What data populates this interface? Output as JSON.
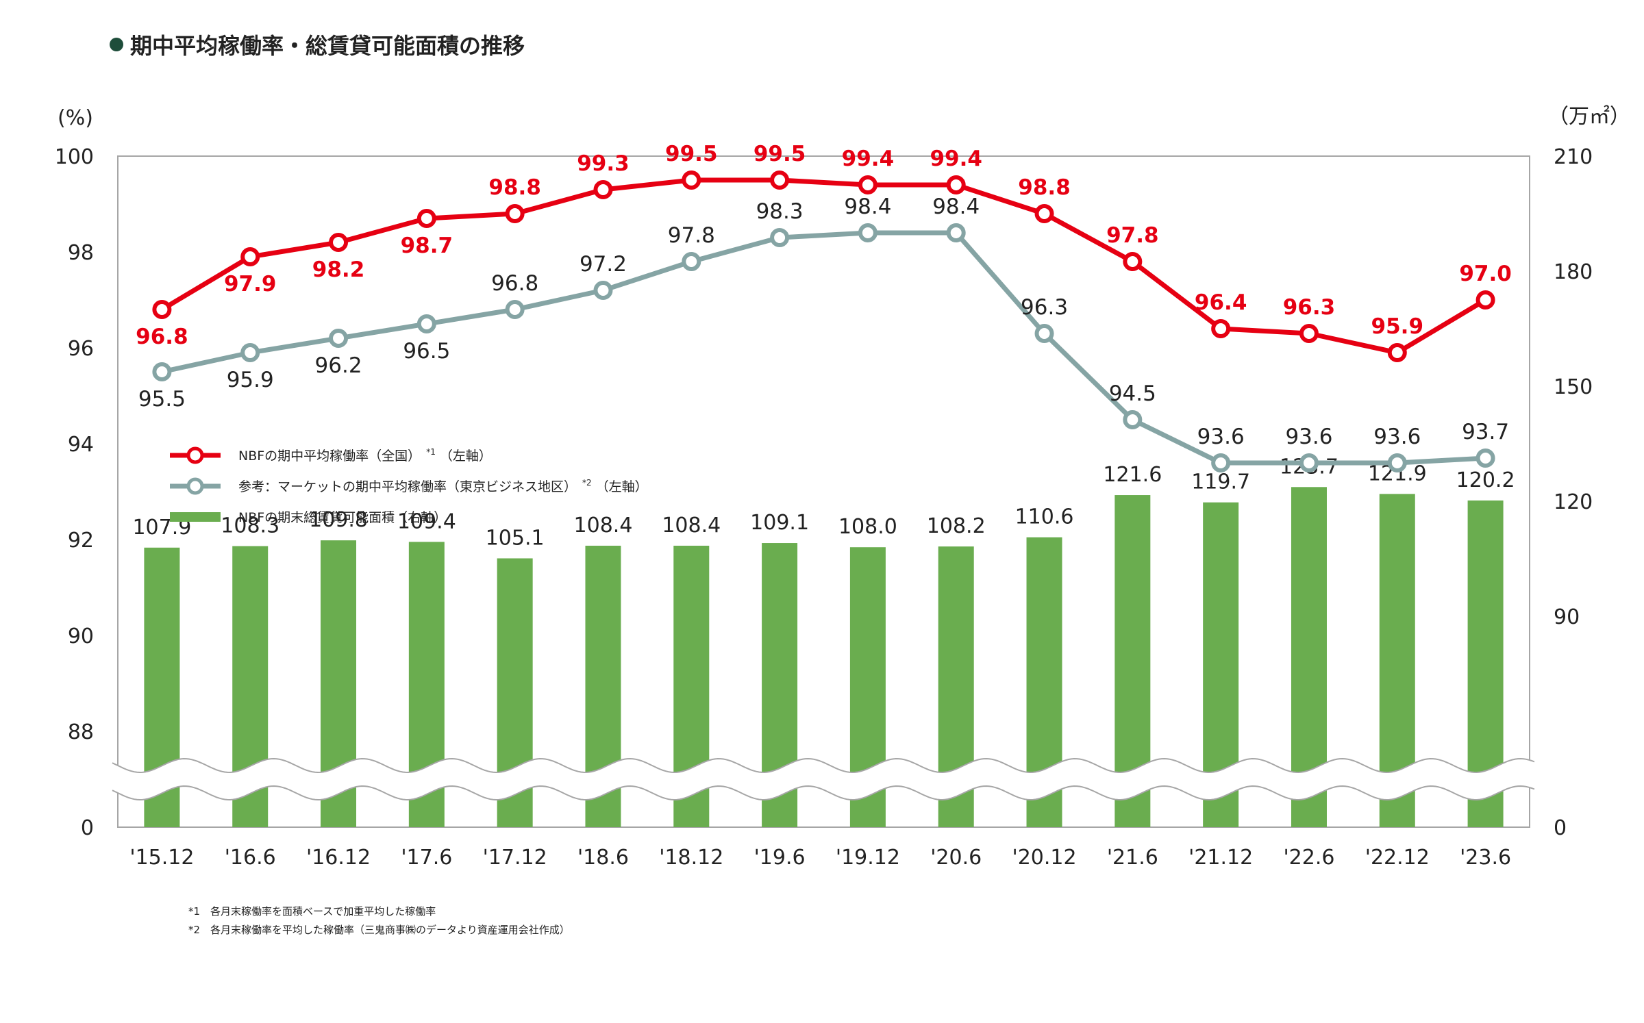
{
  "title": "期中平均稼働率・総賃貸可能面積の推移",
  "chart_data": {
    "type": "bar+line",
    "categories": [
      "'15.12",
      "'16.6",
      "'16.12",
      "'17.6",
      "'17.12",
      "'18.6",
      "'18.12",
      "'19.6",
      "'19.12",
      "'20.6",
      "'20.12",
      "'21.6",
      "'21.12",
      "'22.6",
      "'22.12",
      "'23.6"
    ],
    "left_axis": {
      "unit": "(%)",
      "ticks": [
        {
          "v": 100,
          "label": "100"
        },
        {
          "v": 98,
          "label": "98"
        },
        {
          "v": 96,
          "label": "96"
        },
        {
          "v": 94,
          "label": "94"
        },
        {
          "v": 92,
          "label": "92"
        },
        {
          "v": 90,
          "label": "90"
        },
        {
          "v": 88,
          "label": "88"
        }
      ],
      "ylim": [
        88,
        100
      ],
      "break_label": "0"
    },
    "right_axis": {
      "unit": "（万㎡）",
      "ticks": [
        {
          "v": 210,
          "label": "210"
        },
        {
          "v": 180,
          "label": "180"
        },
        {
          "v": 150,
          "label": "150"
        },
        {
          "v": 120,
          "label": "120"
        },
        {
          "v": 90,
          "label": "90"
        }
      ],
      "ylim": [
        60,
        210
      ],
      "break_label": "0"
    },
    "axis_break": true,
    "series": [
      {
        "name": "NBFの期中平均稼働率（全国）",
        "marker": "*1",
        "axis_note": "（左軸）",
        "type": "line",
        "axis": "left",
        "color": "#e60012",
        "values": [
          96.8,
          97.9,
          98.2,
          98.7,
          98.8,
          99.3,
          99.5,
          99.5,
          99.4,
          99.4,
          98.8,
          97.8,
          96.4,
          96.3,
          95.9,
          97.0
        ],
        "labels": [
          "96.8",
          "97.9",
          "98.2",
          "98.7",
          "98.8",
          "99.3",
          "99.5",
          "99.5",
          "99.4",
          "99.4",
          "98.8",
          "97.8",
          "96.4",
          "96.3",
          "95.9",
          "97.0"
        ],
        "label_pos": [
          "below",
          "below",
          "below",
          "below",
          "above",
          "above",
          "above",
          "above",
          "above",
          "above",
          "above",
          "above",
          "above",
          "above",
          "above",
          "above"
        ]
      },
      {
        "name": "参考：マーケットの期中平均稼働率（東京ビジネス地区）",
        "marker": "*2",
        "axis_note": "（左軸）",
        "type": "line",
        "axis": "left",
        "color": "#85a4a4",
        "values": [
          95.5,
          95.9,
          96.2,
          96.5,
          96.8,
          97.2,
          97.8,
          98.3,
          98.4,
          98.4,
          96.3,
          94.5,
          93.6,
          93.6,
          93.6,
          93.7
        ],
        "labels": [
          "95.5",
          "95.9",
          "96.2",
          "96.5",
          "96.8",
          "97.2",
          "97.8",
          "98.3",
          "98.4",
          "98.4",
          "96.3",
          "94.5",
          "93.6",
          "93.6",
          "93.6",
          "93.7"
        ],
        "label_pos": [
          "below",
          "below",
          "below",
          "below",
          "above",
          "above",
          "above",
          "above",
          "above",
          "above",
          "above",
          "above",
          "above",
          "above",
          "above",
          "above"
        ]
      },
      {
        "name": "NBFの期末総賃貸可能面積（右軸）",
        "type": "bar",
        "axis": "right",
        "color": "#6aad4f",
        "values": [
          107.9,
          108.3,
          109.8,
          109.4,
          105.1,
          108.4,
          108.4,
          109.1,
          108.0,
          108.2,
          110.6,
          121.6,
          119.7,
          123.7,
          121.9,
          120.2
        ],
        "labels": [
          "107.9",
          "108.3",
          "109.8",
          "109.4",
          "105.1",
          "108.4",
          "108.4",
          "109.1",
          "108.0",
          "108.2",
          "110.6",
          "121.6",
          "119.7",
          "123.7",
          "121.9",
          "120.2"
        ]
      }
    ],
    "legend_position": "left-middle",
    "grid": false
  },
  "footnotes": [
    {
      "mark": "*1",
      "text": "各月末稼働率を面積ベースで加重平均した稼働率"
    },
    {
      "mark": "*2",
      "text": "各月末稼働率を平均した稼働率（三鬼商事㈱のデータより資産運用会社作成）"
    }
  ]
}
